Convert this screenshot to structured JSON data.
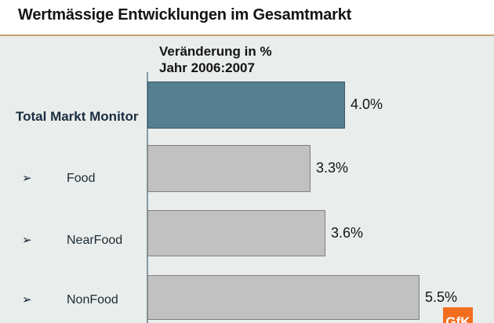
{
  "header": {
    "title": "Wertmässige Entwicklungen im Gesamtmarkt"
  },
  "chart": {
    "subtitle_line1": "Veränderung in %",
    "subtitle_line2": "Jahr 2006:2007",
    "bullet_char": "➢"
  },
  "chart_data": {
    "type": "bar",
    "orientation": "horizontal",
    "title": "Wertmässige Entwicklungen im Gesamtmarkt",
    "subtitle": "Veränderung in % Jahr 2006:2007",
    "categories": [
      "Total Markt Monitor",
      "Food",
      "NearFood",
      "NonFood"
    ],
    "values": [
      4.0,
      3.3,
      3.6,
      5.5
    ],
    "value_labels": [
      "4.0%",
      "3.3%",
      "3.6%",
      "5.5%"
    ],
    "unit": "%",
    "xlim": [
      0,
      6.5
    ],
    "grid": false,
    "legend": false,
    "highlight_index": 0,
    "highlight_color": "#56808F",
    "highlight_border": "#3A5866",
    "bar_color": "#C1C1C1",
    "bar_border": "#7F7F7F"
  },
  "logo": {
    "text": "GfK",
    "color": "#F26E1E"
  },
  "colors": {
    "slide_background": "#E9EDEC",
    "header_background": "#FFFFFF",
    "separator_line": "#C9A06E",
    "axis_line": "#8A99A3",
    "title_text": "#141414",
    "total_label_text": "#1A2E40",
    "category_label_text": "#1C2B33"
  }
}
